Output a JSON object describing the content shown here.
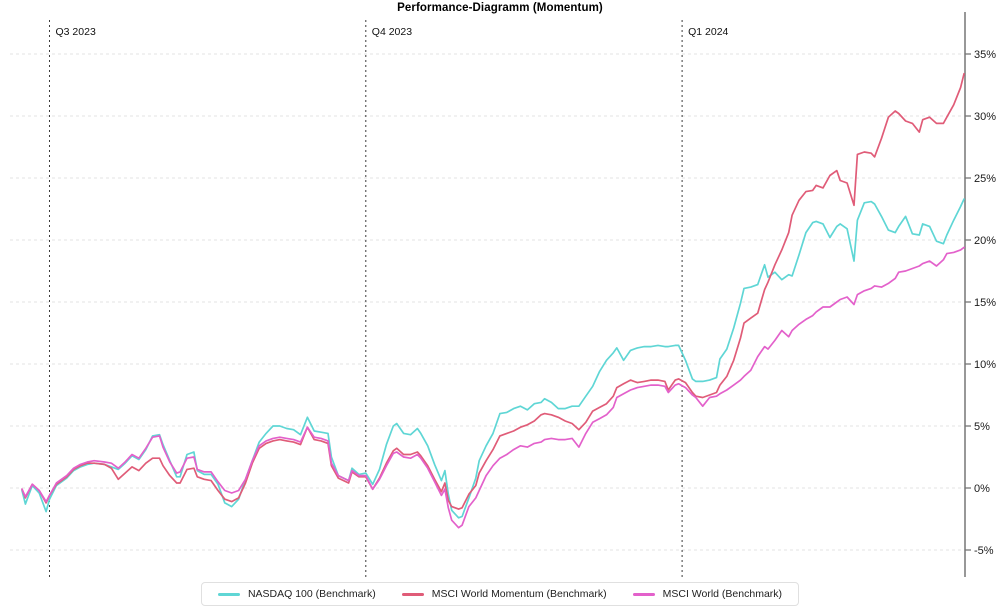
{
  "chart_data": {
    "type": "line",
    "title": "Performance-Diagramm (Momentum)",
    "y_unit": "%",
    "y_ticks": [
      35,
      30,
      25,
      20,
      15,
      10,
      5,
      0,
      -5
    ],
    "ylim": [
      -7.2,
      37.7
    ],
    "x_domain": [
      0,
      274
    ],
    "grid": "horizontal-dashed",
    "legend_position": "bottom-center",
    "x_markers": [
      {
        "label": "Q3 2023",
        "day": 8
      },
      {
        "label": "Q4 2023",
        "day": 100
      },
      {
        "label": "Q1 2024",
        "day": 192
      }
    ],
    "colors": {
      "axis": "#777777",
      "gridline": "#e3e3e3",
      "quarter_line": "#3b3b3b",
      "tick_text": "#1a1a1a"
    },
    "days": [
      0,
      1,
      3,
      5,
      7,
      8,
      10,
      13,
      15,
      17,
      19,
      21,
      24,
      26,
      28,
      30,
      32,
      34,
      36,
      38,
      40,
      41,
      43,
      45,
      46,
      48,
      50,
      51,
      53,
      55,
      57,
      59,
      61,
      63,
      65,
      67,
      69,
      71,
      73,
      75,
      77,
      79,
      81,
      83,
      85,
      87,
      89,
      90,
      92,
      95,
      96,
      98,
      100,
      102,
      104,
      106,
      108,
      109,
      111,
      113,
      115,
      116,
      118,
      120,
      122,
      123,
      124,
      125,
      127,
      128,
      130,
      132,
      133,
      135,
      137,
      139,
      141,
      143,
      145,
      147,
      149,
      151,
      152,
      154,
      156,
      158,
      160,
      162,
      164,
      166,
      168,
      170,
      172,
      173,
      175,
      177,
      179,
      181,
      183,
      185,
      187,
      188,
      190,
      191,
      193,
      195,
      196,
      198,
      200,
      202,
      203,
      205,
      207,
      209,
      210,
      212,
      214,
      216,
      217,
      219,
      221,
      223,
      224,
      226,
      228,
      230,
      231,
      233,
      235,
      237,
      238,
      240,
      242,
      243,
      245,
      247,
      248,
      250,
      252,
      254,
      255,
      257,
      259,
      261,
      262,
      264,
      266,
      268,
      269,
      271,
      273,
      274
    ],
    "series": [
      {
        "name": "NASDAQ 100 (Benchmark)",
        "color": "#5fd6d5",
        "values": [
          -0.2,
          -1.3,
          0.2,
          -0.4,
          -1.9,
          -0.9,
          0.2,
          0.8,
          1.4,
          1.7,
          1.9,
          2.0,
          1.9,
          1.7,
          1.5,
          2.0,
          2.6,
          2.3,
          3.1,
          4.2,
          4.3,
          3.5,
          2.2,
          0.9,
          0.9,
          2.7,
          2.9,
          1.4,
          1.1,
          1.1,
          0.3,
          -1.2,
          -1.5,
          -0.9,
          0.7,
          2.2,
          3.7,
          4.4,
          5.0,
          5.0,
          4.8,
          4.7,
          4.3,
          5.7,
          4.6,
          4.5,
          4.4,
          2.5,
          1.0,
          0.6,
          1.6,
          1.1,
          1.2,
          0.3,
          1.5,
          3.5,
          5.0,
          5.2,
          4.4,
          4.3,
          4.8,
          4.4,
          3.4,
          1.9,
          0.6,
          1.4,
          -0.5,
          -1.8,
          -2.4,
          -2.3,
          -0.8,
          0.8,
          2.2,
          3.4,
          4.4,
          6.0,
          6.1,
          6.4,
          6.6,
          6.3,
          6.8,
          6.9,
          7.2,
          6.9,
          6.4,
          6.4,
          6.6,
          6.6,
          7.4,
          8.2,
          9.4,
          10.3,
          10.9,
          11.3,
          10.3,
          11.1,
          11.3,
          11.4,
          11.4,
          11.5,
          11.4,
          11.4,
          11.5,
          11.5,
          10.3,
          8.8,
          8.6,
          8.6,
          8.7,
          8.9,
          10.4,
          11.2,
          12.9,
          14.9,
          16.1,
          16.2,
          16.4,
          18.0,
          17.0,
          17.4,
          16.8,
          17.2,
          17.1,
          18.8,
          20.6,
          21.4,
          21.5,
          21.3,
          20.2,
          21.1,
          21.3,
          20.9,
          18.3,
          21.6,
          23.0,
          23.1,
          22.9,
          21.9,
          20.8,
          20.6,
          21.1,
          21.9,
          20.5,
          20.4,
          21.3,
          21.1,
          19.9,
          19.7,
          20.4,
          21.6,
          22.7,
          23.3
        ]
      },
      {
        "name": "MSCI World Momentum (Benchmark)",
        "color": "#e05c78",
        "values": [
          -0.1,
          -0.8,
          0.3,
          -0.2,
          -1.2,
          -0.6,
          0.3,
          0.9,
          1.5,
          1.8,
          2.0,
          2.0,
          1.9,
          1.6,
          0.7,
          1.2,
          1.7,
          1.4,
          2.0,
          2.4,
          2.4,
          1.8,
          1.0,
          0.4,
          0.4,
          1.5,
          1.6,
          0.9,
          0.7,
          0.6,
          -0.2,
          -0.9,
          -1.1,
          -0.8,
          0.4,
          2.0,
          3.2,
          3.6,
          3.8,
          3.9,
          3.8,
          3.7,
          3.5,
          4.9,
          3.9,
          3.8,
          3.6,
          1.8,
          0.8,
          0.4,
          1.3,
          0.9,
          0.9,
          -0.1,
          0.8,
          2.0,
          3.0,
          3.2,
          2.7,
          2.7,
          2.9,
          2.6,
          1.8,
          0.7,
          -0.3,
          0.4,
          -1.0,
          -1.5,
          -1.7,
          -1.6,
          -0.5,
          0.2,
          1.2,
          2.2,
          3.1,
          4.2,
          4.4,
          4.6,
          4.9,
          5.1,
          5.4,
          5.9,
          6.0,
          5.9,
          5.7,
          5.4,
          5.2,
          4.7,
          5.3,
          6.2,
          6.5,
          6.8,
          7.4,
          8.1,
          8.4,
          8.7,
          8.5,
          8.6,
          8.7,
          8.7,
          8.6,
          7.9,
          8.7,
          8.8,
          8.5,
          7.7,
          7.4,
          7.3,
          7.5,
          7.7,
          8.3,
          9.0,
          10.3,
          12.1,
          13.3,
          13.7,
          14.1,
          16.0,
          16.6,
          18.0,
          19.2,
          20.6,
          22.0,
          23.2,
          23.9,
          24.0,
          24.4,
          24.2,
          25.2,
          25.6,
          24.8,
          24.6,
          22.8,
          26.9,
          27.1,
          27.0,
          26.7,
          28.2,
          29.9,
          30.4,
          30.2,
          29.6,
          29.4,
          28.7,
          29.7,
          29.9,
          29.4,
          29.4,
          29.9,
          30.9,
          32.3,
          33.4
        ]
      },
      {
        "name": "MSCI World (Benchmark)",
        "color": "#e361cb",
        "values": [
          -0.1,
          -0.7,
          0.3,
          -0.2,
          -1.1,
          -0.6,
          0.4,
          1.0,
          1.6,
          1.9,
          2.1,
          2.2,
          2.1,
          2.0,
          1.6,
          2.1,
          2.7,
          2.4,
          3.2,
          4.1,
          4.2,
          3.3,
          2.1,
          1.2,
          1.3,
          2.4,
          2.5,
          1.5,
          1.3,
          1.3,
          0.5,
          -0.2,
          -0.4,
          -0.2,
          0.7,
          2.2,
          3.4,
          3.8,
          4.0,
          4.1,
          4.0,
          3.9,
          3.7,
          4.9,
          4.1,
          4.0,
          3.8,
          2.0,
          1.0,
          0.6,
          1.4,
          1.0,
          1.0,
          -0.1,
          0.7,
          1.8,
          2.8,
          2.9,
          2.5,
          2.4,
          2.7,
          2.4,
          1.6,
          0.5,
          -0.6,
          -0.1,
          -1.6,
          -2.6,
          -3.2,
          -3.0,
          -1.5,
          -0.8,
          -0.2,
          1.0,
          1.8,
          2.4,
          2.7,
          3.1,
          3.4,
          3.3,
          3.6,
          3.7,
          3.9,
          4.0,
          3.9,
          3.9,
          4.0,
          3.3,
          4.4,
          5.3,
          5.6,
          5.9,
          6.5,
          7.3,
          7.6,
          7.9,
          8.1,
          8.2,
          8.3,
          8.3,
          8.2,
          7.7,
          8.3,
          8.4,
          8.1,
          7.5,
          7.3,
          6.6,
          7.3,
          7.4,
          7.6,
          7.9,
          8.3,
          8.7,
          9.0,
          9.5,
          10.6,
          11.4,
          11.2,
          11.9,
          12.7,
          12.2,
          12.7,
          13.2,
          13.6,
          13.9,
          14.2,
          14.6,
          14.6,
          15.0,
          15.2,
          15.4,
          14.8,
          15.6,
          15.9,
          16.1,
          16.3,
          16.2,
          16.5,
          16.9,
          17.4,
          17.5,
          17.7,
          17.9,
          18.1,
          18.3,
          17.9,
          18.4,
          18.9,
          19.0,
          19.2,
          19.4
        ]
      }
    ]
  }
}
